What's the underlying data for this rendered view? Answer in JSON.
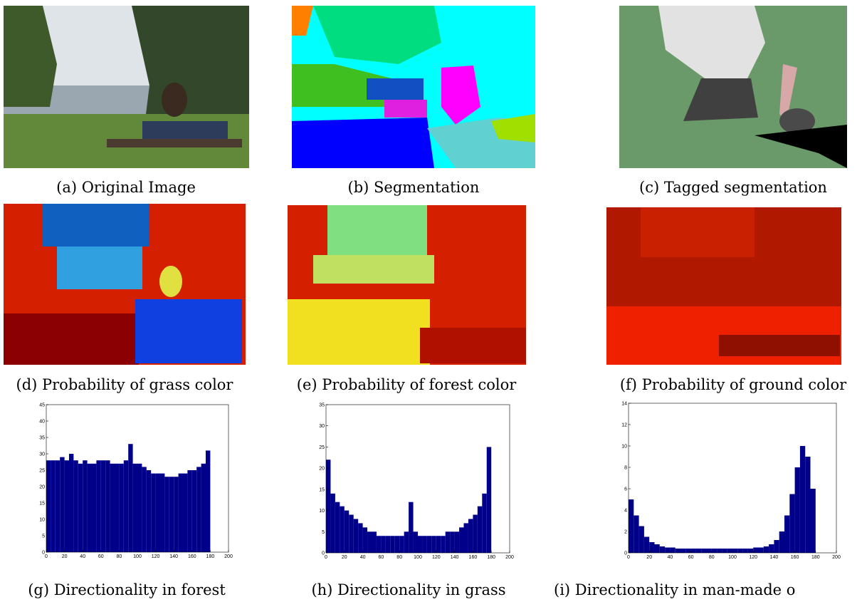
{
  "figure": {
    "captions": [
      "(a) Original Image",
      "(b) Segmentation",
      "(c) Tagged segmentation",
      "(d) Probability of grass color",
      "(e) Probability of forest color",
      "(f) Probability of ground color",
      "(g) Directionality in forest",
      "(h) Directionality in grass",
      "(i) Directionality in man-made o"
    ]
  },
  "chart_data": [
    {
      "type": "histogram",
      "color": "#00008b",
      "bins": [
        0,
        5,
        10,
        15,
        20,
        25,
        30,
        35,
        40,
        45,
        50,
        55,
        60,
        65,
        70,
        75,
        80,
        85,
        90,
        95,
        100,
        105,
        110,
        115,
        120,
        125,
        130,
        135,
        140,
        145,
        150,
        155,
        160,
        165,
        170,
        175,
        180
      ],
      "values": [
        28,
        28,
        28,
        29,
        28,
        30,
        28,
        27,
        28,
        27,
        27,
        28,
        28,
        28,
        27,
        27,
        27,
        28,
        33,
        27,
        27,
        26,
        25,
        24,
        24,
        24,
        23,
        23,
        23,
        24,
        24,
        25,
        25,
        26,
        27,
        31
      ],
      "xlim": [
        0,
        200
      ],
      "xticks": [
        0,
        20,
        40,
        60,
        80,
        100,
        120,
        140,
        160,
        180,
        200
      ],
      "ylim": [
        0,
        45
      ],
      "yticks": [
        0,
        5,
        10,
        15,
        20,
        25,
        30,
        35,
        40,
        45
      ]
    },
    {
      "type": "histogram",
      "color": "#00008b",
      "bins": [
        0,
        5,
        10,
        15,
        20,
        25,
        30,
        35,
        40,
        45,
        50,
        55,
        60,
        65,
        70,
        75,
        80,
        85,
        90,
        95,
        100,
        105,
        110,
        115,
        120,
        125,
        130,
        135,
        140,
        145,
        150,
        155,
        160,
        165,
        170,
        175,
        180
      ],
      "values": [
        22,
        14,
        12,
        11,
        10,
        9,
        8,
        7,
        6,
        5,
        5,
        4,
        4,
        4,
        4,
        4,
        4,
        5,
        12,
        5,
        4,
        4,
        4,
        4,
        4,
        4,
        5,
        5,
        5,
        6,
        7,
        8,
        9,
        11,
        14,
        25
      ],
      "xlim": [
        0,
        200
      ],
      "xticks": [
        0,
        20,
        40,
        60,
        80,
        100,
        120,
        140,
        160,
        180,
        200
      ],
      "ylim": [
        0,
        35
      ],
      "yticks": [
        0,
        5,
        10,
        15,
        20,
        25,
        30,
        35
      ]
    },
    {
      "type": "histogram",
      "color": "#00008b",
      "bins": [
        0,
        5,
        10,
        15,
        20,
        25,
        30,
        35,
        40,
        45,
        50,
        55,
        60,
        65,
        70,
        75,
        80,
        85,
        90,
        95,
        100,
        105,
        110,
        115,
        120,
        125,
        130,
        135,
        140,
        145,
        150,
        155,
        160,
        165,
        170,
        175,
        180
      ],
      "values": [
        5,
        3.5,
        2.5,
        1.5,
        1,
        0.8,
        0.6,
        0.5,
        0.5,
        0.4,
        0.4,
        0.4,
        0.4,
        0.4,
        0.4,
        0.4,
        0.4,
        0.4,
        0.4,
        0.4,
        0.4,
        0.4,
        0.4,
        0.4,
        0.5,
        0.5,
        0.6,
        0.8,
        1.2,
        2,
        3.5,
        5.5,
        8,
        10,
        9,
        6
      ],
      "xlim": [
        0,
        200
      ],
      "xticks": [
        0,
        20,
        40,
        60,
        80,
        100,
        120,
        140,
        160,
        180,
        200
      ],
      "ylim": [
        0,
        14
      ],
      "yticks": [
        0,
        2,
        4,
        6,
        8,
        10,
        12,
        14
      ]
    }
  ]
}
